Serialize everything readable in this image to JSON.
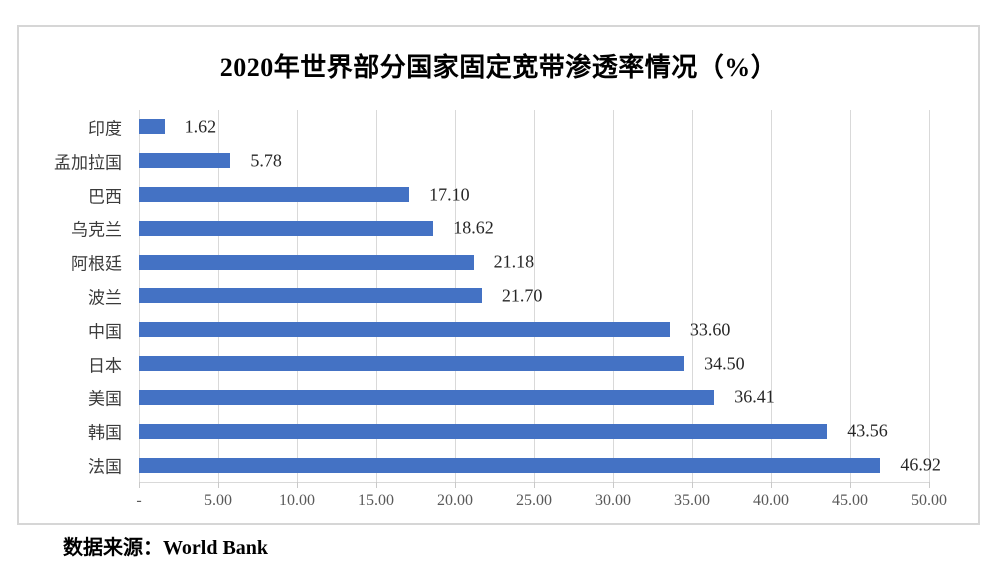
{
  "chart_data": {
    "type": "bar",
    "orientation": "horizontal",
    "title": "2020年世界部分国家固定宽带渗透率情况（%）",
    "categories": [
      "印度",
      "孟加拉国",
      "巴西",
      "乌克兰",
      "阿根廷",
      "波兰",
      "中国",
      "日本",
      "美国",
      "韩国",
      "法国"
    ],
    "values": [
      1.62,
      5.78,
      17.1,
      18.62,
      21.18,
      21.7,
      33.6,
      34.5,
      36.41,
      43.56,
      46.92
    ],
    "value_labels": [
      "1.62",
      "5.78",
      "17.10",
      "18.62",
      "21.18",
      "21.70",
      "33.60",
      "34.50",
      "36.41",
      "43.56",
      "46.92"
    ],
    "xlim": [
      0,
      50
    ],
    "x_tick_values": [
      0,
      5,
      10,
      15,
      20,
      25,
      30,
      35,
      40,
      45,
      50
    ],
    "x_tick_labels": [
      "-",
      "5.00",
      "10.00",
      "15.00",
      "20.00",
      "25.00",
      "30.00",
      "35.00",
      "40.00",
      "45.00",
      "50.00"
    ],
    "grid": true,
    "legend": false,
    "data_label_position": "outside-end",
    "colors": {
      "bar": "#4472C4",
      "gridline": "#D9D9D9",
      "value_label": "#262626",
      "category_label": "#3B3B3B",
      "tick_label": "#595959",
      "title": "#000000",
      "card_border": "#D6D6D6"
    }
  },
  "source_note": "数据来源：World Bank"
}
